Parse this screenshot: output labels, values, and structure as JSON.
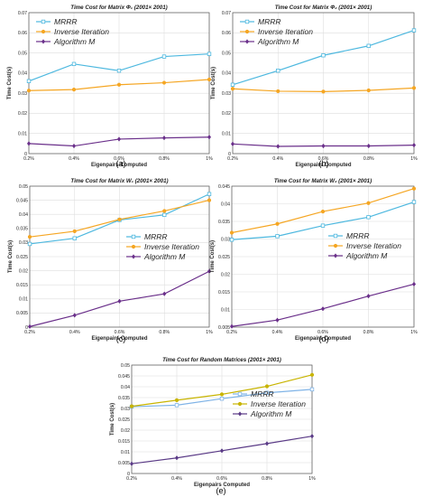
{
  "chart_data": [
    {
      "type": "line",
      "label": "(a)",
      "title": "Time Cost for Matrix Φ₁ (2001× 2001)",
      "xlabel": "Eigenpairs Computed",
      "ylabel": "Time Cost(s)",
      "x": [
        "0.2%",
        "0.4%",
        "0.6%",
        "0.8%",
        "1%"
      ],
      "ylim": [
        0,
        0.07
      ],
      "yticks": [
        "0",
        "0.01",
        "0.02",
        "0.03",
        "0.04",
        "0.05",
        "0.06",
        "0.07"
      ],
      "legend": "top-left",
      "series": [
        {
          "name": "MRRR",
          "color": "#4db8df",
          "marker": "square",
          "values": [
            0.036,
            0.0445,
            0.0412,
            0.0482,
            0.0495
          ]
        },
        {
          "name": "Inverse Iteration",
          "color": "#f5a623",
          "marker": "circle",
          "values": [
            0.0313,
            0.0318,
            0.0342,
            0.0352,
            0.0368
          ]
        },
        {
          "name": "Algorithm M",
          "color": "#6a2f8a",
          "marker": "diamond",
          "values": [
            0.005,
            0.0038,
            0.0072,
            0.0078,
            0.0082
          ]
        }
      ]
    },
    {
      "type": "line",
      "label": "(b)",
      "title": "Time Cost for Matrix Φ₂ (2001× 2001)",
      "xlabel": "Eigenpairs Computed",
      "ylabel": "Time Cost(s)",
      "x": [
        "0.2%",
        "0.4%",
        "0.6%",
        "0.8%",
        "1%"
      ],
      "ylim": [
        0,
        0.07
      ],
      "yticks": [
        "0",
        "0.01",
        "0.02",
        "0.03",
        "0.04",
        "0.05",
        "0.06",
        "0.07"
      ],
      "legend": "top-left",
      "series": [
        {
          "name": "MRRR",
          "color": "#4db8df",
          "marker": "square",
          "values": [
            0.0342,
            0.0412,
            0.0488,
            0.0535,
            0.0612
          ]
        },
        {
          "name": "Inverse Iteration",
          "color": "#f5a623",
          "marker": "circle",
          "values": [
            0.0322,
            0.031,
            0.0308,
            0.0314,
            0.0326
          ]
        },
        {
          "name": "Algorithm M",
          "color": "#6a2f8a",
          "marker": "diamond",
          "values": [
            0.0048,
            0.0036,
            0.0038,
            0.0038,
            0.0042
          ]
        }
      ]
    },
    {
      "type": "line",
      "label": "(c)",
      "title": "Time Cost for Matrix W₁ (2001× 2001)",
      "xlabel": "Eigenpairs Computed",
      "ylabel": "Time Cost(s)",
      "x": [
        "0.2%",
        "0.4%",
        "0.6%",
        "0.8%",
        "1%"
      ],
      "ylim": [
        0,
        0.05
      ],
      "yticks": [
        "0",
        "0.005",
        "0.01",
        "0.015",
        "0.02",
        "0.025",
        "0.03",
        "0.035",
        "0.04",
        "0.045",
        "0.05"
      ],
      "legend": "center-right",
      "series": [
        {
          "name": "MRRR",
          "color": "#4db8df",
          "marker": "square",
          "values": [
            0.0295,
            0.0315,
            0.038,
            0.0398,
            0.0472
          ]
        },
        {
          "name": "Inverse Iteration",
          "color": "#f5a623",
          "marker": "circle",
          "values": [
            0.032,
            0.034,
            0.0382,
            0.0412,
            0.045
          ]
        },
        {
          "name": "Algorithm M",
          "color": "#6a2f8a",
          "marker": "diamond",
          "values": [
            0.0002,
            0.0042,
            0.0092,
            0.0118,
            0.0198
          ]
        }
      ]
    },
    {
      "type": "line",
      "label": "(d)",
      "title": "Time Cost for Matrix W₂ (2001× 2001)",
      "xlabel": "Eigenpairs Computed",
      "ylabel": "Time Cost(s)",
      "x": [
        "0.2%",
        "0.4%",
        "0.6%",
        "0.8%",
        "1%"
      ],
      "ylim": [
        0.005,
        0.045
      ],
      "yticks": [
        "0.005",
        "0.01",
        "0.015",
        "0.02",
        "0.025",
        "0.03",
        "0.035",
        "0.04",
        "0.045"
      ],
      "legend": "center-right",
      "series": [
        {
          "name": "MRRR",
          "color": "#4db8df",
          "marker": "square",
          "values": [
            0.0298,
            0.0308,
            0.0338,
            0.0362,
            0.0405
          ]
        },
        {
          "name": "Inverse Iteration",
          "color": "#f5a623",
          "marker": "circle",
          "values": [
            0.0318,
            0.0343,
            0.0378,
            0.0402,
            0.0443
          ]
        },
        {
          "name": "Algorithm M",
          "color": "#6a2f8a",
          "marker": "diamond",
          "values": [
            0.0052,
            0.007,
            0.0102,
            0.0138,
            0.0172
          ]
        }
      ]
    },
    {
      "type": "line",
      "label": "(e)",
      "title": "Time Cost for Random Matrices (2001× 2001)",
      "xlabel": "Eigenpairs Computed",
      "ylabel": "Time Cost(s)",
      "x": [
        "0.2%",
        "0.4%",
        "0.6%",
        "0.8%",
        "1%"
      ],
      "ylim": [
        0,
        0.05
      ],
      "yticks": [
        "0",
        "0.005",
        "0.01",
        "0.015",
        "0.02",
        "0.025",
        "0.03",
        "0.035",
        "0.04",
        "0.045",
        "0.05"
      ],
      "legend": "center-right",
      "series": [
        {
          "name": "MRRR",
          "color": "#7fb3e6",
          "marker": "square",
          "values": [
            0.0308,
            0.0315,
            0.0345,
            0.0372,
            0.0388
          ]
        },
        {
          "name": "Inverse Iteration",
          "color": "#c8b400",
          "marker": "circle",
          "values": [
            0.031,
            0.0338,
            0.0365,
            0.0402,
            0.0455
          ]
        },
        {
          "name": "Algorithm M",
          "color": "#5a3a86",
          "marker": "diamond",
          "values": [
            0.0045,
            0.0072,
            0.0105,
            0.0138,
            0.0172
          ]
        }
      ]
    }
  ]
}
